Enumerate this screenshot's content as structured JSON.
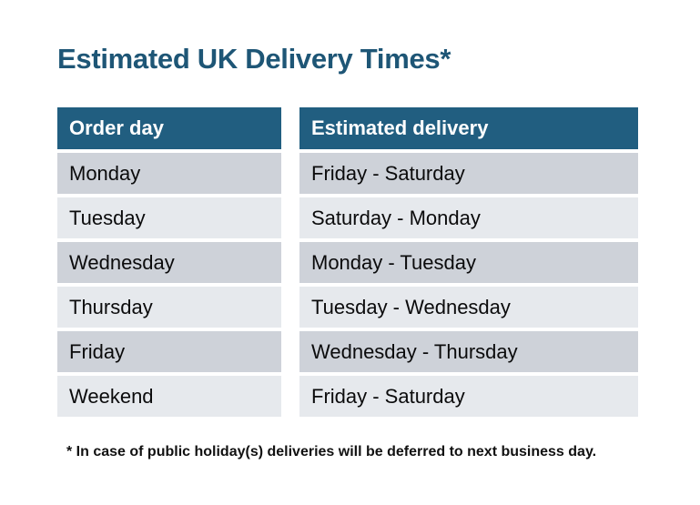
{
  "page": {
    "title": "Estimated UK Delivery Times*",
    "footnote": "* In case of public holiday(s) deliveries will be deferred to next business day."
  },
  "table": {
    "headers": {
      "order_day": "Order day",
      "estimated_delivery": "Estimated delivery"
    },
    "rows": [
      {
        "order_day": "Monday",
        "estimated_delivery": "Friday - Saturday"
      },
      {
        "order_day": "Tuesday",
        "estimated_delivery": "Saturday - Monday"
      },
      {
        "order_day": "Wednesday",
        "estimated_delivery": "Monday - Tuesday"
      },
      {
        "order_day": "Thursday",
        "estimated_delivery": "Tuesday - Wednesday"
      },
      {
        "order_day": "Friday",
        "estimated_delivery": "Wednesday - Thursday"
      },
      {
        "order_day": "Weekend",
        "estimated_delivery": "Friday - Saturday"
      }
    ]
  },
  "colors": {
    "background": "#FFFFFF",
    "title_text": "#1E5676",
    "header_bg": "#215E80",
    "header_text": "#FFFFFF",
    "row_dark": "#CED2D9",
    "row_light": "#E6E9ED",
    "body_text": "#0B0B0C"
  },
  "chart_data": {
    "type": "table",
    "title": "Estimated UK Delivery Times*",
    "columns": [
      "Order day",
      "Estimated delivery"
    ],
    "rows": [
      [
        "Monday",
        "Friday - Saturday"
      ],
      [
        "Tuesday",
        "Saturday - Monday"
      ],
      [
        "Wednesday",
        "Monday - Tuesday"
      ],
      [
        "Thursday",
        "Tuesday - Wednesday"
      ],
      [
        "Friday",
        "Wednesday - Thursday"
      ],
      [
        "Weekend",
        "Friday - Saturday"
      ]
    ],
    "footnote": "* In case of public holiday(s) deliveries will be deferred to next business day."
  }
}
